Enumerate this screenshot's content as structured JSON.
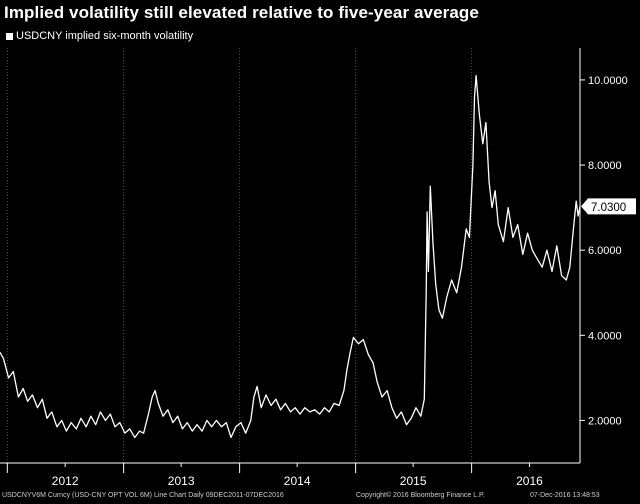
{
  "chart_data": {
    "type": "line",
    "title": "Implied volatility still elevated relative to five-year average",
    "series": [
      {
        "name": "USDCNY implied six-month volatility",
        "color": "#ffffff",
        "points": [
          [
            "2011-12-09",
            3.6
          ],
          [
            "2011-12-20",
            3.45
          ],
          [
            "2012-01-05",
            3.0
          ],
          [
            "2012-01-20",
            3.15
          ],
          [
            "2012-02-05",
            2.55
          ],
          [
            "2012-02-20",
            2.75
          ],
          [
            "2012-03-05",
            2.45
          ],
          [
            "2012-03-20",
            2.6
          ],
          [
            "2012-04-05",
            2.3
          ],
          [
            "2012-04-20",
            2.5
          ],
          [
            "2012-05-05",
            2.05
          ],
          [
            "2012-05-20",
            2.2
          ],
          [
            "2012-06-05",
            1.85
          ],
          [
            "2012-06-20",
            2.0
          ],
          [
            "2012-07-05",
            1.75
          ],
          [
            "2012-07-20",
            1.95
          ],
          [
            "2012-08-05",
            1.8
          ],
          [
            "2012-08-20",
            2.05
          ],
          [
            "2012-09-05",
            1.85
          ],
          [
            "2012-09-20",
            2.1
          ],
          [
            "2012-10-05",
            1.9
          ],
          [
            "2012-10-20",
            2.2
          ],
          [
            "2012-11-05",
            2.0
          ],
          [
            "2012-11-20",
            2.15
          ],
          [
            "2012-12-05",
            1.85
          ],
          [
            "2012-12-20",
            1.95
          ],
          [
            "2013-01-05",
            1.7
          ],
          [
            "2013-01-20",
            1.8
          ],
          [
            "2013-02-05",
            1.6
          ],
          [
            "2013-02-20",
            1.75
          ],
          [
            "2013-03-05",
            1.7
          ],
          [
            "2013-03-20",
            2.15
          ],
          [
            "2013-04-01",
            2.55
          ],
          [
            "2013-04-10",
            2.7
          ],
          [
            "2013-04-20",
            2.4
          ],
          [
            "2013-05-05",
            2.1
          ],
          [
            "2013-05-20",
            2.25
          ],
          [
            "2013-06-05",
            1.95
          ],
          [
            "2013-06-20",
            2.1
          ],
          [
            "2013-07-05",
            1.8
          ],
          [
            "2013-07-20",
            1.95
          ],
          [
            "2013-08-05",
            1.75
          ],
          [
            "2013-08-20",
            1.9
          ],
          [
            "2013-09-05",
            1.75
          ],
          [
            "2013-09-20",
            2.0
          ],
          [
            "2013-10-05",
            1.85
          ],
          [
            "2013-10-20",
            2.0
          ],
          [
            "2013-11-05",
            1.85
          ],
          [
            "2013-11-20",
            1.95
          ],
          [
            "2013-12-05",
            1.6
          ],
          [
            "2013-12-20",
            1.85
          ],
          [
            "2014-01-05",
            1.95
          ],
          [
            "2014-01-20",
            1.7
          ],
          [
            "2014-02-05",
            2.0
          ],
          [
            "2014-02-15",
            2.55
          ],
          [
            "2014-02-25",
            2.8
          ],
          [
            "2014-03-10",
            2.3
          ],
          [
            "2014-03-25",
            2.6
          ],
          [
            "2014-04-10",
            2.35
          ],
          [
            "2014-04-25",
            2.5
          ],
          [
            "2014-05-10",
            2.25
          ],
          [
            "2014-05-25",
            2.4
          ],
          [
            "2014-06-10",
            2.2
          ],
          [
            "2014-06-25",
            2.3
          ],
          [
            "2014-07-10",
            2.15
          ],
          [
            "2014-07-25",
            2.3
          ],
          [
            "2014-08-10",
            2.2
          ],
          [
            "2014-08-25",
            2.25
          ],
          [
            "2014-09-10",
            2.15
          ],
          [
            "2014-09-25",
            2.3
          ],
          [
            "2014-10-10",
            2.2
          ],
          [
            "2014-10-25",
            2.4
          ],
          [
            "2014-11-10",
            2.35
          ],
          [
            "2014-11-25",
            2.7
          ],
          [
            "2014-12-05",
            3.2
          ],
          [
            "2014-12-15",
            3.6
          ],
          [
            "2014-12-25",
            3.95
          ],
          [
            "2015-01-10",
            3.8
          ],
          [
            "2015-01-25",
            3.9
          ],
          [
            "2015-02-10",
            3.55
          ],
          [
            "2015-02-25",
            3.35
          ],
          [
            "2015-03-10",
            2.9
          ],
          [
            "2015-03-25",
            2.55
          ],
          [
            "2015-04-10",
            2.7
          ],
          [
            "2015-04-25",
            2.3
          ],
          [
            "2015-05-10",
            2.05
          ],
          [
            "2015-05-25",
            2.2
          ],
          [
            "2015-06-10",
            1.9
          ],
          [
            "2015-06-25",
            2.05
          ],
          [
            "2015-07-10",
            2.3
          ],
          [
            "2015-07-25",
            2.1
          ],
          [
            "2015-08-05",
            2.5
          ],
          [
            "2015-08-11",
            5.0
          ],
          [
            "2015-08-14",
            6.9
          ],
          [
            "2015-08-18",
            5.5
          ],
          [
            "2015-08-24",
            7.5
          ],
          [
            "2015-09-01",
            6.2
          ],
          [
            "2015-09-10",
            5.2
          ],
          [
            "2015-09-20",
            4.6
          ],
          [
            "2015-10-01",
            4.4
          ],
          [
            "2015-10-15",
            4.9
          ],
          [
            "2015-10-30",
            5.3
          ],
          [
            "2015-11-15",
            5.0
          ],
          [
            "2015-11-30",
            5.6
          ],
          [
            "2015-12-15",
            6.5
          ],
          [
            "2015-12-25",
            6.3
          ],
          [
            "2016-01-05",
            8.0
          ],
          [
            "2016-01-10",
            9.6
          ],
          [
            "2016-01-15",
            10.1
          ],
          [
            "2016-01-25",
            9.2
          ],
          [
            "2016-02-05",
            8.5
          ],
          [
            "2016-02-15",
            9.0
          ],
          [
            "2016-02-25",
            7.6
          ],
          [
            "2016-03-05",
            7.0
          ],
          [
            "2016-03-15",
            7.4
          ],
          [
            "2016-03-25",
            6.6
          ],
          [
            "2016-04-10",
            6.2
          ],
          [
            "2016-04-25",
            7.0
          ],
          [
            "2016-05-10",
            6.3
          ],
          [
            "2016-05-25",
            6.6
          ],
          [
            "2016-06-10",
            5.9
          ],
          [
            "2016-06-25",
            6.4
          ],
          [
            "2016-07-10",
            6.0
          ],
          [
            "2016-07-25",
            5.8
          ],
          [
            "2016-08-10",
            5.6
          ],
          [
            "2016-08-25",
            6.0
          ],
          [
            "2016-09-10",
            5.5
          ],
          [
            "2016-09-25",
            6.1
          ],
          [
            "2016-10-10",
            5.4
          ],
          [
            "2016-10-25",
            5.3
          ],
          [
            "2016-11-05",
            5.6
          ],
          [
            "2016-11-15",
            6.4
          ],
          [
            "2016-11-25",
            7.15
          ],
          [
            "2016-12-01",
            6.8
          ],
          [
            "2016-12-07",
            7.03
          ]
        ]
      }
    ],
    "x_range": [
      "2011-12-09",
      "2016-12-07"
    ],
    "ylim": [
      1.0,
      10.75
    ],
    "y_axis_side": "right",
    "y_ticks": [
      {
        "value": 2,
        "label": "2.0000"
      },
      {
        "value": 4,
        "label": "4.0000"
      },
      {
        "value": 6,
        "label": "6.0000"
      },
      {
        "value": 8,
        "label": "8.0000"
      },
      {
        "value": 10,
        "label": "10.0000"
      }
    ],
    "x_ticks": [
      {
        "date": "2012-01-01",
        "kind": "minor"
      },
      {
        "date": "2012-07-01",
        "label": "2012",
        "kind": "mid"
      },
      {
        "date": "2013-01-01",
        "kind": "minor"
      },
      {
        "date": "2013-07-01",
        "label": "2013",
        "kind": "mid"
      },
      {
        "date": "2014-01-01",
        "kind": "minor"
      },
      {
        "date": "2014-07-01",
        "label": "2014",
        "kind": "mid"
      },
      {
        "date": "2015-01-01",
        "kind": "minor"
      },
      {
        "date": "2015-07-01",
        "label": "2015",
        "kind": "mid"
      },
      {
        "date": "2016-01-01",
        "kind": "minor"
      },
      {
        "date": "2016-07-01",
        "label": "2016",
        "kind": "mid"
      }
    ],
    "last_value": {
      "value": 7.03,
      "label": "7.0300"
    },
    "grid": "vertical-dotted",
    "legend_placement": "top-left"
  },
  "footer": {
    "left": "USDCNYV6M Curncy (USD-CNY OPT VOL 6M) Line Chart  Daily 09DEC2011-07DEC2016",
    "middle": "Copyright© 2016 Bloomberg Finance L.P.",
    "right": "07-Dec-2016 13:48:53"
  },
  "colors": {
    "background": "#000000",
    "line": "#ffffff",
    "axis": "#ffffff",
    "grid": "#555555",
    "footer_text": "#cfcfcf"
  }
}
